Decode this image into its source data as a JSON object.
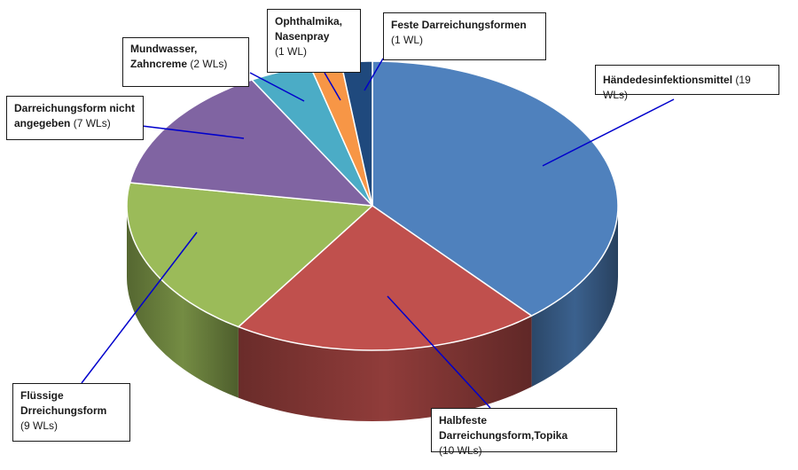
{
  "chart_data": {
    "type": "pie",
    "style": "3d-exploded-perspective",
    "unit": "WLs",
    "slices": [
      {
        "label": "Händedesinfektionsmittel",
        "value_text": "(19 WLs)",
        "value": 19,
        "color": "#4f81bd"
      },
      {
        "label": "Halbfeste Darreichungsform,Topika",
        "value_text": "(10 WLs)",
        "value": 10,
        "color": "#c0504d"
      },
      {
        "label": "Flüssige Drreichungsform",
        "value_text": "(9 WLs)",
        "value": 9,
        "color": "#9bbb59"
      },
      {
        "label": "Darreichungsform nicht angegeben",
        "value_text": "(7 WLs)",
        "value": 7,
        "color": "#8064a2"
      },
      {
        "label": "Mundwasser, Zahncreme",
        "value_text": "(2 WLs)",
        "value": 2,
        "color": "#4bacc6"
      },
      {
        "label": "Ophthalmika, Nasenpray",
        "value_text": "(1 WL)",
        "value": 1,
        "color": "#f79646"
      },
      {
        "label": "Feste Darreichungsformen",
        "value_text": "(1 WL)",
        "value": 1,
        "color": "#1f497d"
      }
    ],
    "leader_line_color": "#0000cc",
    "callout_border_color": "#1a1a1a"
  }
}
